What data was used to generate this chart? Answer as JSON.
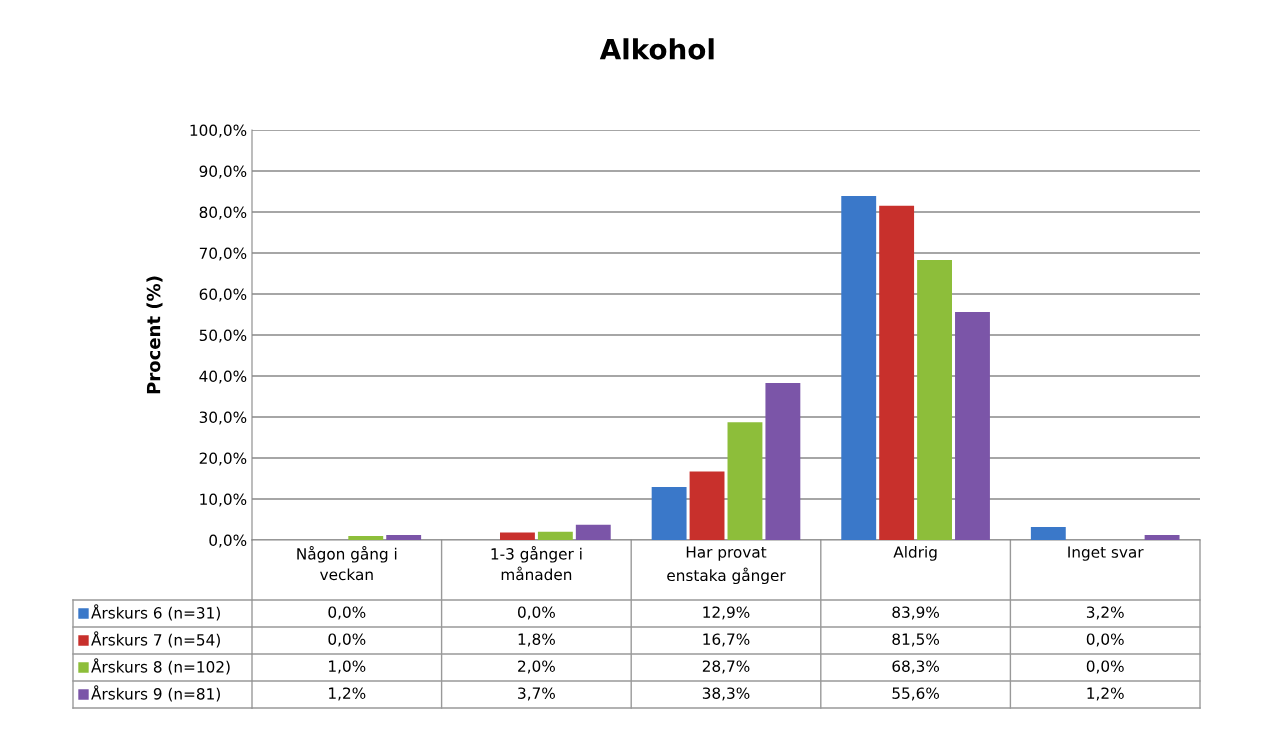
{
  "chart_data": {
    "type": "bar",
    "title": "Alkohol",
    "ylabel": "Procent (%)",
    "categories": [
      "Någon gång i\nveckan",
      "1-3 gånger i\nmånaden",
      "Har provat\nenstaka gånger",
      "Aldrig",
      "Inget svar"
    ],
    "series": [
      {
        "name": "Årskurs 6 (n=31)",
        "color": "#3a78c9",
        "values": [
          0.0,
          0.0,
          12.9,
          83.9,
          3.2
        ],
        "value_labels": [
          "0,0%",
          "0,0%",
          "12,9%",
          "83,9%",
          "3,2%"
        ]
      },
      {
        "name": "Årskurs 7 (n=54)",
        "color": "#c8302c",
        "values": [
          0.0,
          1.8,
          16.7,
          81.5,
          0.0
        ],
        "value_labels": [
          "0,0%",
          "1,8%",
          "16,7%",
          "81,5%",
          "0,0%"
        ]
      },
      {
        "name": "Årskurs 8 (n=102)",
        "color": "#8dbe3a",
        "values": [
          1.0,
          2.0,
          28.7,
          68.3,
          0.0
        ],
        "value_labels": [
          "1,0%",
          "2,0%",
          "28,7%",
          "68,3%",
          "0,0%"
        ]
      },
      {
        "name": "Årskurs 9 (n=81)",
        "color": "#7b55a8",
        "values": [
          1.2,
          3.7,
          38.3,
          55.6,
          1.2
        ],
        "value_labels": [
          "1,2%",
          "3,7%",
          "38,3%",
          "55,6%",
          "1,2%"
        ]
      }
    ],
    "ylim": [
      0,
      100
    ],
    "yticks": [
      {
        "value": 0,
        "label": "0,0%"
      },
      {
        "value": 10,
        "label": "10,0%"
      },
      {
        "value": 20,
        "label": "20,0%"
      },
      {
        "value": 30,
        "label": "30,0%"
      },
      {
        "value": 40,
        "label": "40,0%"
      },
      {
        "value": 50,
        "label": "50,0%"
      },
      {
        "value": 60,
        "label": "60,0%"
      },
      {
        "value": 70,
        "label": "70,0%"
      },
      {
        "value": 80,
        "label": "80,0%"
      },
      {
        "value": 90,
        "label": "90,0%"
      },
      {
        "value": 100,
        "label": "100,0%"
      }
    ],
    "grid": "y",
    "legend": "bottom"
  }
}
